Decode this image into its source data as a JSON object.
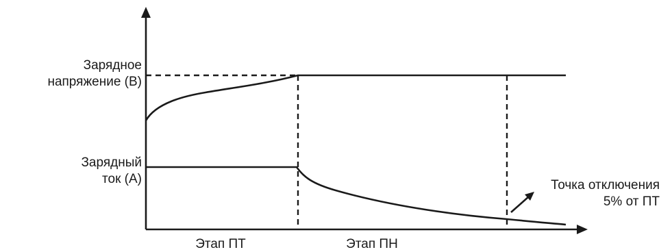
{
  "labels": {
    "voltage_line1": "Зарядное",
    "voltage_line2": "напряжение (В)",
    "current_line1": "Зарядный",
    "current_line2": "ток (А)",
    "cutoff_line1": "Точка отключения",
    "cutoff_line2": "5% от ПТ",
    "stage_cc": "Этап ПТ",
    "stage_cv": "Этап ПН"
  },
  "colors": {
    "line": "#1a1a1a",
    "background": "#ffffff"
  }
}
